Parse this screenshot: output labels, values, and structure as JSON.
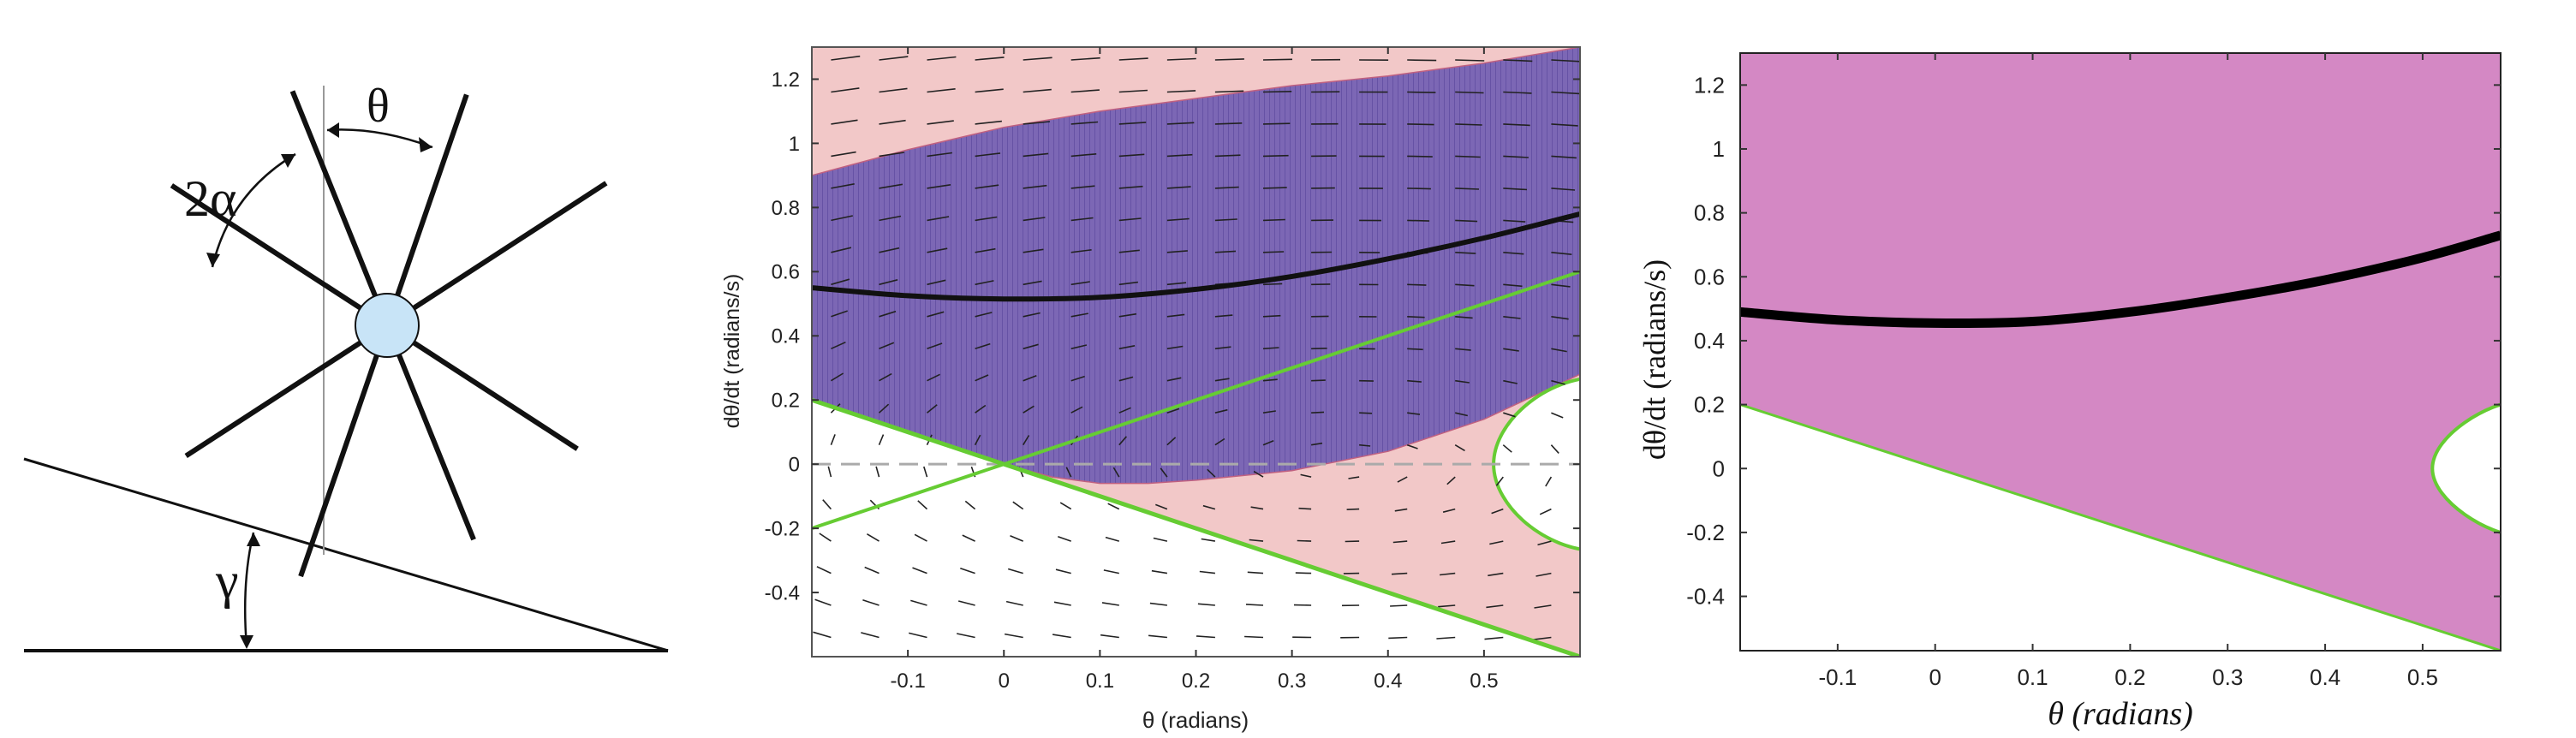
{
  "diagram": {
    "labels": {
      "theta": "θ",
      "two_alpha": "2α",
      "gamma": "γ"
    },
    "colors": {
      "hub": "#c8e4f7",
      "line": "#111111",
      "vertical": "#999999"
    }
  },
  "chart_data": [
    {
      "type": "area",
      "title": "",
      "xlabel": "θ (radians)",
      "ylabel": "dθ/dt (radians/s)",
      "xlim": [
        -0.2,
        0.6
      ],
      "ylim": [
        -0.6,
        1.3
      ],
      "x_ticks": [
        -0.1,
        0,
        0.1,
        0.2,
        0.3,
        0.4,
        0.5
      ],
      "x_tick_labels": [
        "-0.1",
        "0",
        "0.1",
        "0.2",
        "0.3",
        "0.4",
        "0.5"
      ],
      "y_ticks": [
        -0.4,
        -0.2,
        0,
        0.2,
        0.4,
        0.6,
        0.8,
        1,
        1.2
      ],
      "y_tick_labels": [
        "-0.4",
        "-0.2",
        "0",
        "0.2",
        "0.4",
        "0.6",
        "0.8",
        "1",
        "1.2"
      ],
      "grid": false,
      "vector_field": true,
      "colors": {
        "pink_region": "#f2c8c8",
        "basin": "#7c67b5",
        "green": "#66cc33",
        "orbit": "#111111",
        "zero_line": "#aaaaaa"
      },
      "series": [
        {
          "x": [
            -0.2,
            -0.1,
            0,
            0.1,
            0.2,
            0.3,
            0.4,
            0.5,
            0.6
          ],
          "y": [
            0.55,
            0.525,
            0.515,
            0.52,
            0.545,
            0.585,
            0.64,
            0.705,
            0.78
          ]
        },
        {
          "x": [
            -0.2,
            0.6
          ],
          "y": [
            0.2,
            -0.6
          ]
        },
        {
          "x": [
            -0.2,
            0.6
          ],
          "y": [
            -0.2,
            0.6
          ]
        }
      ],
      "regions": [
        {
          "upper_x": [
            -0.2,
            -0.1,
            0,
            0.1,
            0.2,
            0.3,
            0.4,
            0.5,
            0.6
          ],
          "upper_y": [
            0.9,
            0.98,
            1.05,
            1.1,
            1.14,
            1.18,
            1.21,
            1.25,
            1.3
          ],
          "lower_x": [
            -0.2,
            -0.1,
            0,
            0.05,
            0.1,
            0.15,
            0.2,
            0.3,
            0.4,
            0.5,
            0.6
          ],
          "lower_y": [
            0.2,
            0.1,
            0,
            -0.04,
            -0.06,
            -0.06,
            -0.05,
            -0.02,
            0.04,
            0.14,
            0.28
          ]
        }
      ]
    },
    {
      "type": "area",
      "title": "",
      "xlabel": "θ (radians)",
      "ylabel": "dθ/dt (radians/s)",
      "xlim": [
        -0.2,
        0.58
      ],
      "ylim": [
        -0.57,
        1.3
      ],
      "x_ticks": [
        -0.1,
        0,
        0.1,
        0.2,
        0.3,
        0.4,
        0.5
      ],
      "x_tick_labels": [
        "-0.1",
        "0",
        "0.1",
        "0.2",
        "0.3",
        "0.4",
        "0.5"
      ],
      "y_ticks": [
        -0.4,
        -0.2,
        0,
        0.2,
        0.4,
        0.6,
        0.8,
        1,
        1.2
      ],
      "y_tick_labels": [
        "-0.4",
        "-0.2",
        "0",
        "0.2",
        "0.4",
        "0.6",
        "0.8",
        "1",
        "1.2"
      ],
      "grid": false,
      "colors": {
        "region": "#d488c4",
        "green": "#66cc33",
        "orbit": "#000000"
      },
      "series": [
        {
          "x": [
            -0.2,
            -0.1,
            0,
            0.1,
            0.2,
            0.3,
            0.4,
            0.5,
            0.58
          ],
          "y": [
            0.49,
            0.465,
            0.455,
            0.46,
            0.49,
            0.535,
            0.59,
            0.66,
            0.73
          ]
        },
        {
          "x": [
            -0.2,
            0.58
          ],
          "y": [
            0.2,
            -0.57
          ]
        }
      ]
    }
  ]
}
